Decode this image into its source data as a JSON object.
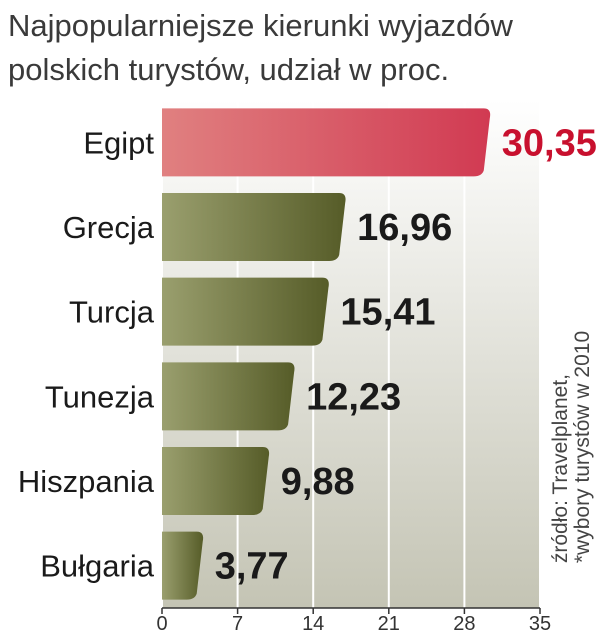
{
  "title_lines": [
    "Najpopularniejsze kierunki wyjazdów",
    "polskich turystów, udział w proc."
  ],
  "source_note": {
    "line1": "źródło: Travelplanet,",
    "line2": "*wybory turystów w 2010"
  },
  "colors": {
    "highlight": "#d44659",
    "highlight_label": "#c8102e",
    "bar": "#5f6531",
    "label": "#1a1a1a"
  },
  "chart_data": {
    "type": "bar",
    "orientation": "horizontal",
    "title": "Najpopularniejsze kierunki wyjazdów polskich turystów, udział w proc.",
    "categories": [
      "Egipt",
      "Grecja",
      "Turcja",
      "Tunezja",
      "Hiszpania",
      "Bułgaria"
    ],
    "values": [
      30.35,
      16.96,
      15.41,
      12.23,
      9.88,
      3.77
    ],
    "value_labels": [
      "30,35",
      "16,96",
      "15,41",
      "12,23",
      "9,88",
      "3,77"
    ],
    "highlight_index": 0,
    "xlim": [
      0,
      35
    ],
    "xticks": [
      0,
      7,
      14,
      21,
      28,
      35
    ],
    "grid": true,
    "xlabel": "",
    "ylabel": ""
  }
}
